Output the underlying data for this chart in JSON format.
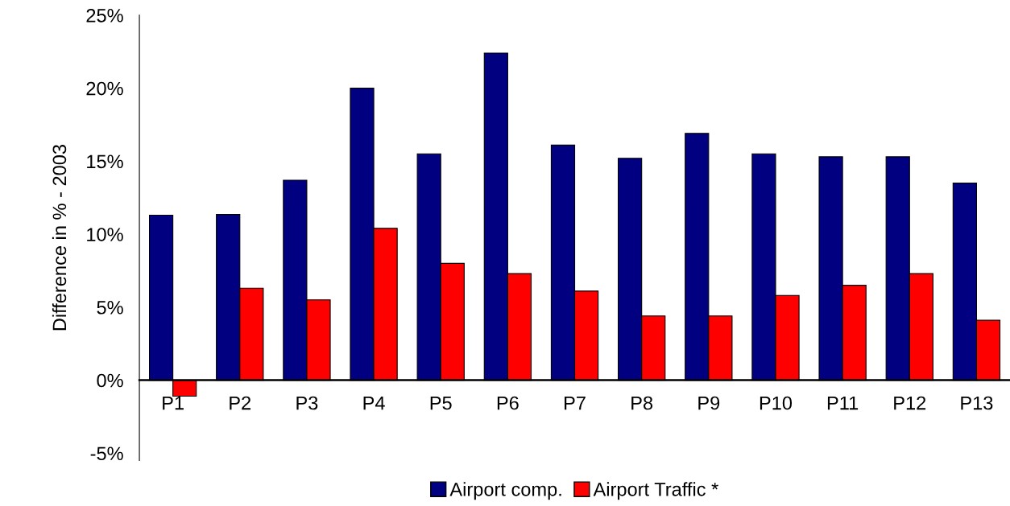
{
  "chart_data": {
    "type": "bar",
    "ylabel": "Difference in % - 2003",
    "categories": [
      "P1",
      "P2",
      "P3",
      "P4",
      "P5",
      "P6",
      "P7",
      "P8",
      "P9",
      "P10",
      "P11",
      "P12",
      "P13"
    ],
    "series": [
      {
        "name": "Airport comp.",
        "color": "#000080",
        "values": [
          11.3,
          11.35,
          13.7,
          20.0,
          15.5,
          22.4,
          16.1,
          15.2,
          16.9,
          15.5,
          15.3,
          15.3,
          13.5
        ]
      },
      {
        "name": "Airport Traffic *",
        "color": "#ff0000",
        "values": [
          -1.1,
          6.3,
          5.5,
          10.4,
          8.0,
          7.3,
          6.1,
          4.4,
          4.4,
          5.8,
          6.5,
          7.3,
          4.1
        ]
      }
    ],
    "ylim": [
      -5.5,
      25
    ],
    "yticks": [
      {
        "value": -5,
        "label": "-5%"
      },
      {
        "value": 0,
        "label": "0%"
      },
      {
        "value": 5,
        "label": "5%"
      },
      {
        "value": 10,
        "label": "10%"
      },
      {
        "value": 15,
        "label": "15%"
      },
      {
        "value": 20,
        "label": "20%"
      },
      {
        "value": 25,
        "label": "25%"
      }
    ],
    "grid": false,
    "legend": "bottom"
  }
}
